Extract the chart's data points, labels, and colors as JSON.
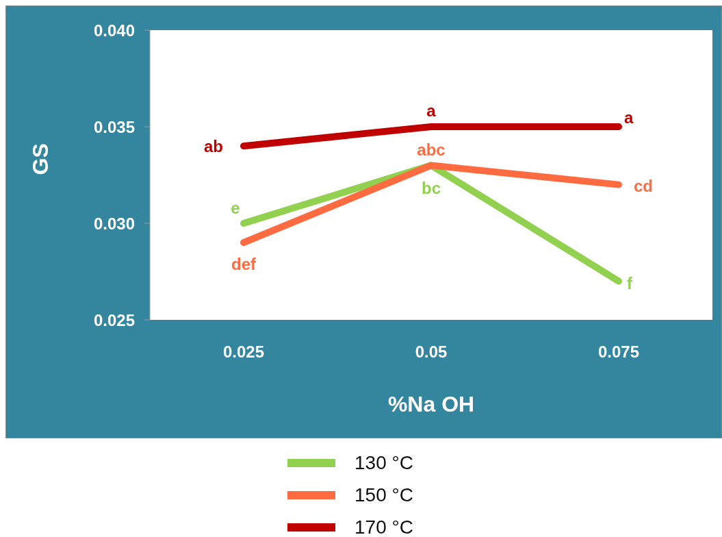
{
  "chart_data": {
    "type": "line",
    "xlabel": "%Na OH",
    "ylabel": "GS",
    "categories": [
      "0.025",
      "0.05",
      "0.075"
    ],
    "series": [
      {
        "name": "130 °C",
        "color": "#92d050",
        "values": [
          0.03,
          0.033,
          0.027
        ],
        "value_labels": [
          "e",
          "bc",
          "f"
        ]
      },
      {
        "name": "150 °C",
        "color": "#ff6b41",
        "values": [
          0.029,
          0.033,
          0.032
        ],
        "value_labels": [
          "def",
          "abc",
          "cd"
        ]
      },
      {
        "name": "170 °C",
        "color": "#c00000",
        "values": [
          0.034,
          0.035,
          0.035
        ],
        "value_labels": [
          "ab",
          "a",
          "a"
        ]
      }
    ],
    "ylim": [
      0.025,
      0.04
    ],
    "yticks": [
      0.025,
      {
        "value": 0.03,
        "label": "0.030"
      },
      0.035,
      {
        "value": 0.04,
        "label": "0.040"
      }
    ],
    "grid": false,
    "legend": "bottom"
  }
}
